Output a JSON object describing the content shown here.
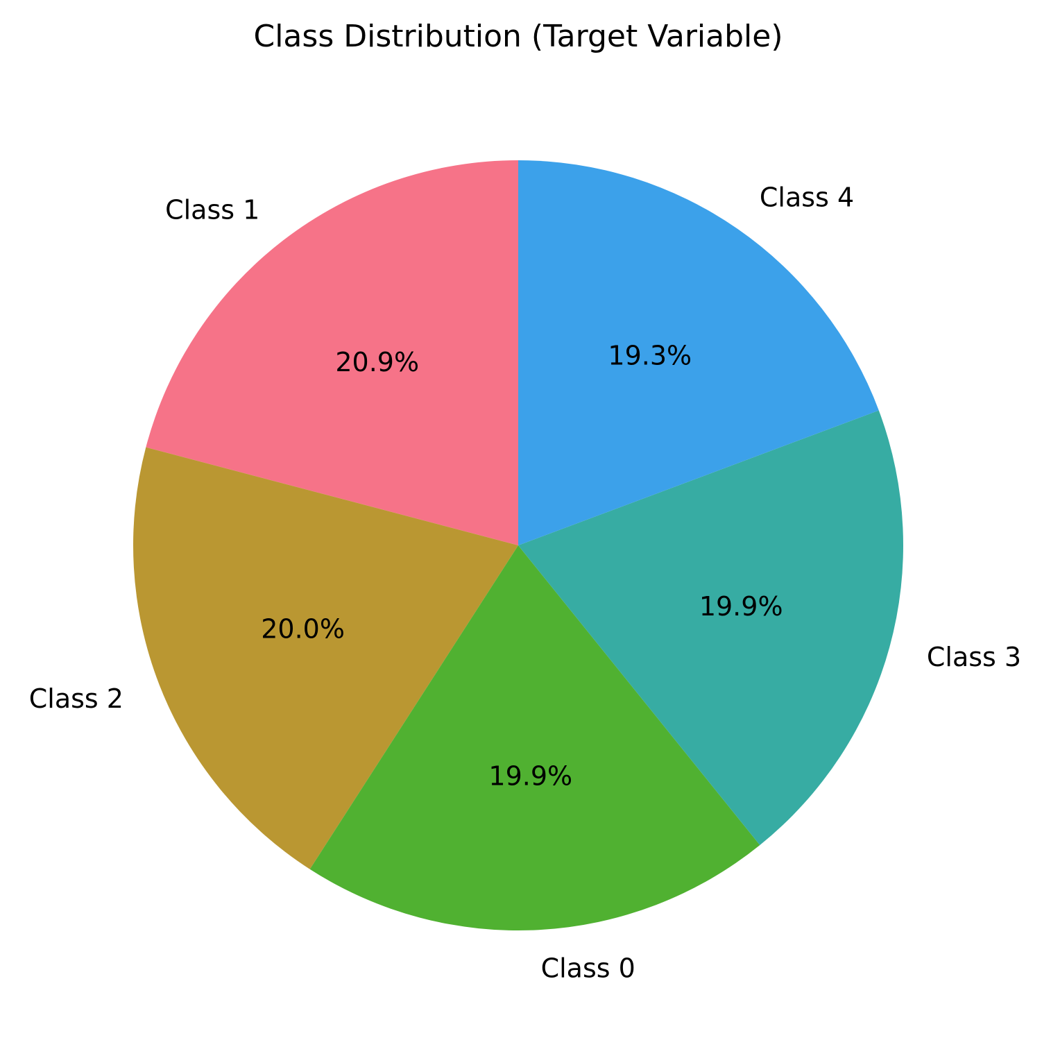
{
  "chart_data": {
    "type": "pie",
    "title": "Class Distribution (Target Variable)",
    "start_angle_deg": 90,
    "direction": "counterclockwise",
    "slices": [
      {
        "label": "Class 1",
        "value": 20.9,
        "pct_label": "20.9%",
        "color": "#f67388"
      },
      {
        "label": "Class 2",
        "value": 20.0,
        "pct_label": "20.0%",
        "color": "#ba9732"
      },
      {
        "label": "Class 0",
        "value": 19.9,
        "pct_label": "19.9%",
        "color": "#50b131"
      },
      {
        "label": "Class 3",
        "value": 19.9,
        "pct_label": "19.9%",
        "color": "#37aca3"
      },
      {
        "label": "Class 4",
        "value": 19.3,
        "pct_label": "19.3%",
        "color": "#3ca1ea"
      }
    ]
  }
}
